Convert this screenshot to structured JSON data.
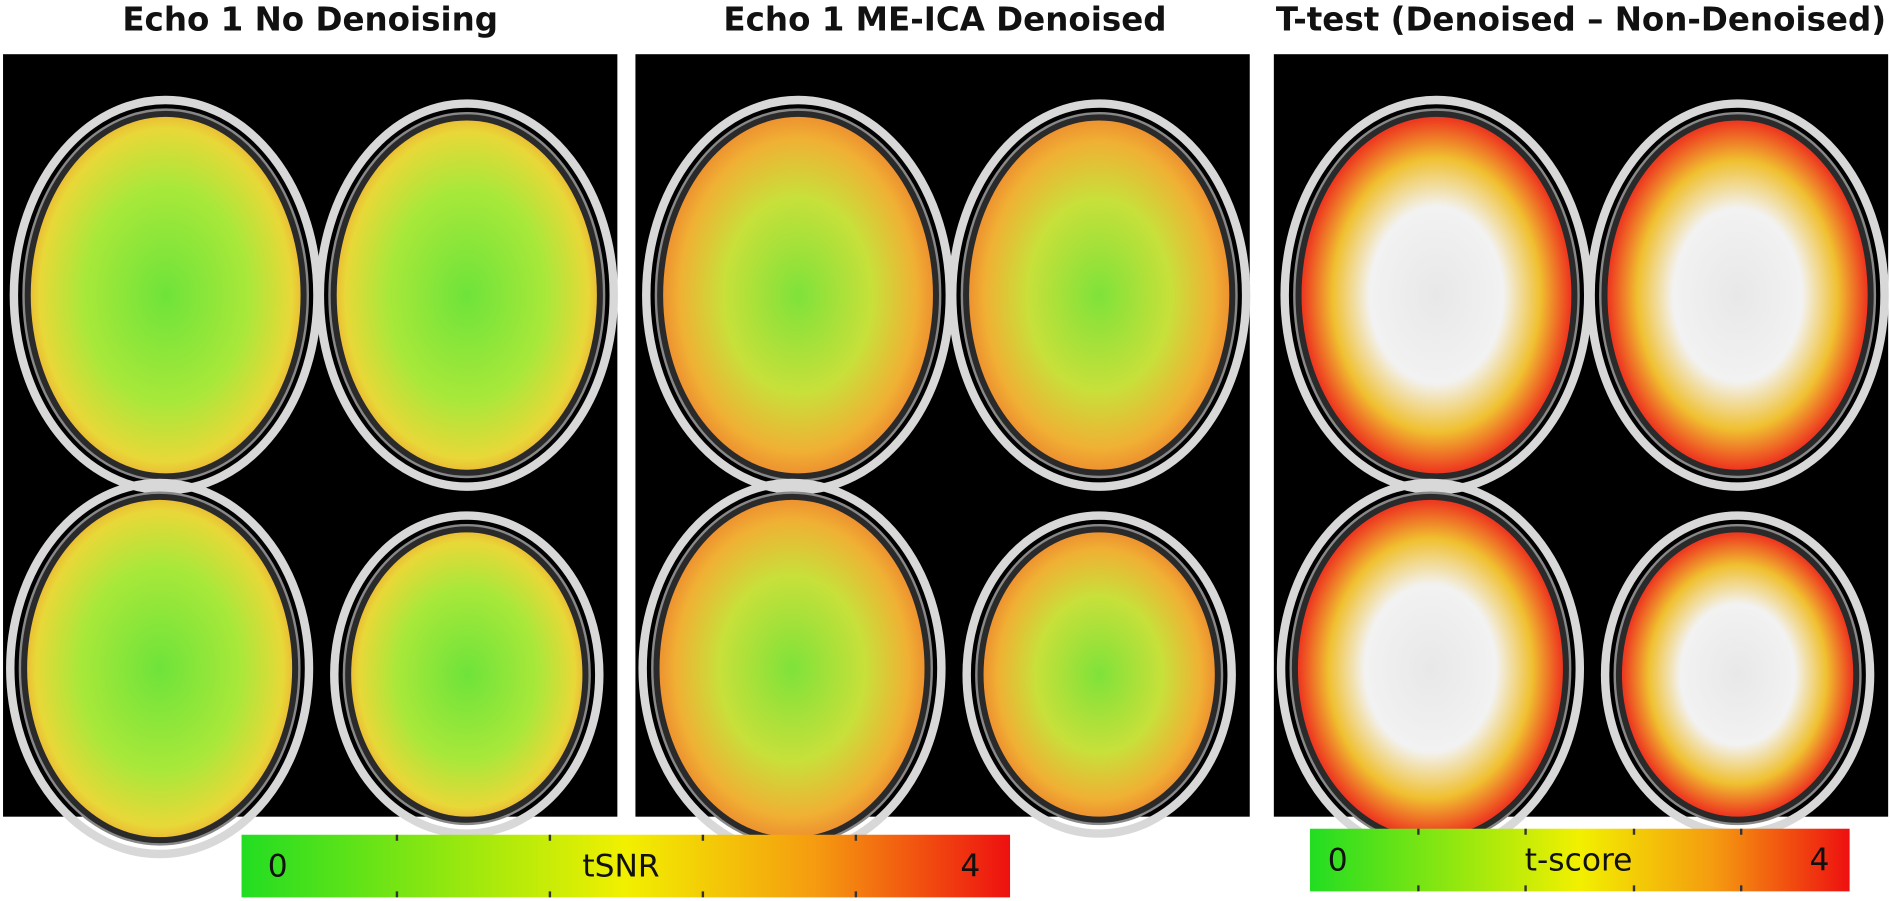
{
  "panels": [
    {
      "title": "Echo 1 No Denoising"
    },
    {
      "title": "Echo 1 ME-ICA Denoised"
    },
    {
      "title": "T-test (Denoised – Non-Denoised)"
    }
  ],
  "colorbars": [
    {
      "label": "tSNR",
      "ticks": [
        0,
        4
      ]
    },
    {
      "label": "t-score",
      "ticks": [
        0,
        4
      ]
    }
  ]
}
